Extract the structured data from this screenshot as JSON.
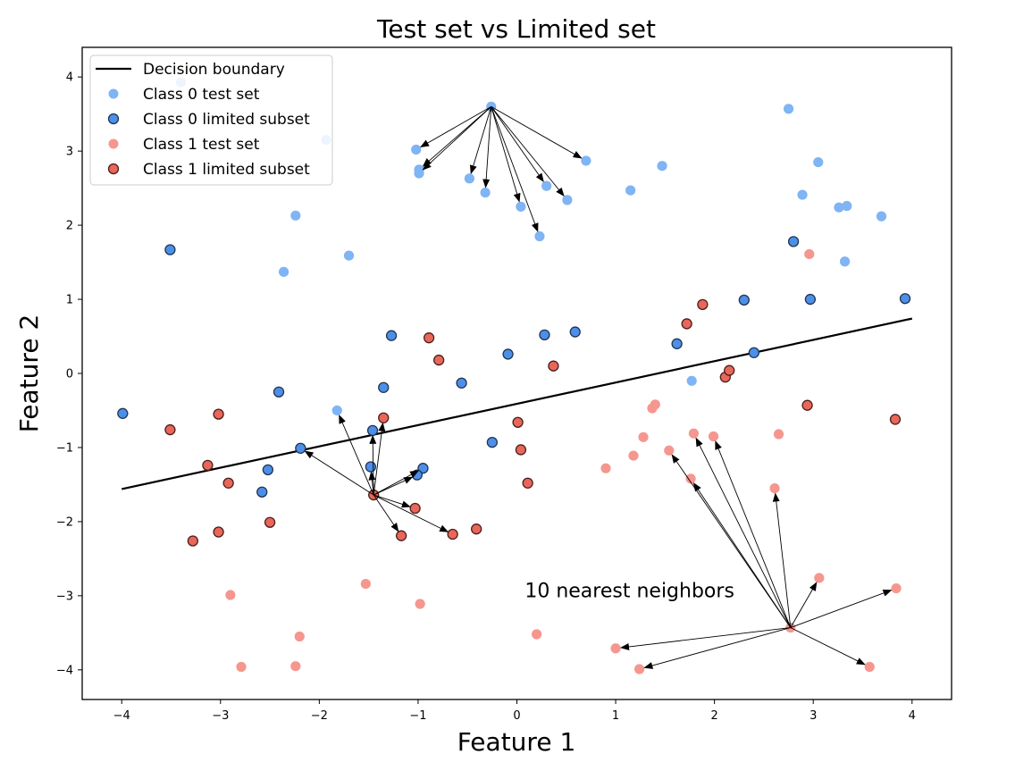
{
  "chart_data": {
    "type": "scatter",
    "title": "Test set vs Limited set",
    "xlabel": "Feature 1",
    "ylabel": "Feature 2",
    "xlim": [
      -4.4,
      4.4
    ],
    "ylim": [
      -4.4,
      4.4
    ],
    "xticks": [
      -4,
      -3,
      -2,
      -1,
      0,
      1,
      2,
      3,
      4
    ],
    "yticks": [
      -4,
      -3,
      -2,
      -1,
      0,
      1,
      2,
      3,
      4
    ],
    "xtick_labels": [
      "−4",
      "−3",
      "−2",
      "−1",
      "0",
      "1",
      "2",
      "3",
      "4"
    ],
    "ytick_labels": [
      "−4",
      "−3",
      "−2",
      "−1",
      "0",
      "1",
      "2",
      "3",
      "4"
    ],
    "grid": false,
    "legend_position": "top-left",
    "decision_boundary": {
      "name": "Decision boundary",
      "color": "#000000",
      "x": [
        -4,
        4
      ],
      "y": [
        -1.56,
        0.74
      ]
    },
    "series": [
      {
        "name": "Class 0 test set",
        "color": "#7fb4f5",
        "edge": "none",
        "points": [
          [
            -3.4,
            3.93
          ],
          [
            -1.93,
            3.15
          ],
          [
            -2.24,
            2.13
          ],
          [
            -1.7,
            1.59
          ],
          [
            -2.36,
            1.37
          ],
          [
            -1.02,
            3.02
          ],
          [
            -0.99,
            2.75
          ],
          [
            -0.99,
            2.7
          ],
          [
            -0.48,
            2.63
          ],
          [
            -0.32,
            2.44
          ],
          [
            -0.26,
            3.6
          ],
          [
            0.04,
            2.25
          ],
          [
            0.23,
            1.85
          ],
          [
            0.3,
            2.53
          ],
          [
            0.51,
            2.34
          ],
          [
            0.7,
            2.87
          ],
          [
            1.15,
            2.47
          ],
          [
            1.47,
            2.8
          ],
          [
            2.75,
            3.57
          ],
          [
            2.89,
            2.41
          ],
          [
            3.05,
            2.85
          ],
          [
            3.26,
            2.24
          ],
          [
            3.34,
            2.26
          ],
          [
            3.69,
            2.12
          ],
          [
            3.32,
            1.51
          ],
          [
            1.77,
            -0.1
          ],
          [
            -1.82,
            -0.5
          ]
        ]
      },
      {
        "name": "Class 0 limited subset",
        "color": "#4d8fe8",
        "edge": "#1f3552",
        "points": [
          [
            -3.51,
            1.67
          ],
          [
            -3.99,
            -0.54
          ],
          [
            -2.41,
            -0.25
          ],
          [
            -1.27,
            0.51
          ],
          [
            -1.35,
            -0.19
          ],
          [
            -1.46,
            -0.77
          ],
          [
            -2.19,
            -1.01
          ],
          [
            -2.52,
            -1.3
          ],
          [
            -2.58,
            -1.6
          ],
          [
            -1.48,
            -1.26
          ],
          [
            -0.95,
            -1.28
          ],
          [
            -1.01,
            -1.37
          ],
          [
            -0.56,
            -0.13
          ],
          [
            -0.09,
            0.26
          ],
          [
            0.28,
            0.52
          ],
          [
            0.59,
            0.56
          ],
          [
            -0.25,
            -0.93
          ],
          [
            1.62,
            0.4
          ],
          [
            2.3,
            0.99
          ],
          [
            2.4,
            0.28
          ],
          [
            2.8,
            1.78
          ],
          [
            2.97,
            1.0
          ],
          [
            3.93,
            1.01
          ]
        ]
      },
      {
        "name": "Class 1 test set",
        "color": "#f5978f",
        "edge": "none",
        "points": [
          [
            2.96,
            1.61
          ],
          [
            1.4,
            -0.42
          ],
          [
            1.37,
            -0.47
          ],
          [
            1.28,
            -0.86
          ],
          [
            1.79,
            -0.81
          ],
          [
            1.99,
            -0.85
          ],
          [
            2.65,
            -0.82
          ],
          [
            1.54,
            -1.04
          ],
          [
            1.18,
            -1.11
          ],
          [
            0.9,
            -1.28
          ],
          [
            1.76,
            -1.42
          ],
          [
            2.61,
            -1.55
          ],
          [
            3.06,
            -2.76
          ],
          [
            3.84,
            -2.9
          ],
          [
            2.77,
            -3.43
          ],
          [
            1.0,
            -3.71
          ],
          [
            1.24,
            -3.99
          ],
          [
            3.57,
            -3.96
          ],
          [
            0.2,
            -3.52
          ],
          [
            -0.98,
            -3.11
          ],
          [
            -1.53,
            -2.84
          ],
          [
            -2.9,
            -2.99
          ],
          [
            -2.2,
            -3.55
          ],
          [
            -2.79,
            -3.96
          ],
          [
            -2.24,
            -3.95
          ]
        ]
      },
      {
        "name": "Class 1 limited subset",
        "color": "#e8675a",
        "edge": "#4a1f1b",
        "points": [
          [
            -3.51,
            -0.76
          ],
          [
            -3.02,
            -0.55
          ],
          [
            -3.13,
            -1.24
          ],
          [
            -2.92,
            -1.48
          ],
          [
            -3.28,
            -2.26
          ],
          [
            -3.02,
            -2.14
          ],
          [
            -2.5,
            -2.01
          ],
          [
            -1.35,
            -0.6
          ],
          [
            -1.45,
            -1.64
          ],
          [
            -1.03,
            -1.82
          ],
          [
            -1.17,
            -2.19
          ],
          [
            -0.65,
            -2.17
          ],
          [
            -0.41,
            -2.1
          ],
          [
            -0.89,
            0.48
          ],
          [
            -0.79,
            0.18
          ],
          [
            0.01,
            -0.66
          ],
          [
            0.04,
            -1.03
          ],
          [
            0.11,
            -1.48
          ],
          [
            0.37,
            0.1
          ],
          [
            1.72,
            0.67
          ],
          [
            1.88,
            0.93
          ],
          [
            2.11,
            -0.05
          ],
          [
            2.15,
            0.04
          ],
          [
            2.94,
            -0.43
          ],
          [
            3.83,
            -0.62
          ]
        ]
      }
    ],
    "neighbor_groups": [
      {
        "from": [
          -0.26,
          3.6
        ],
        "to": [
          [
            -1.02,
            3.02
          ],
          [
            -0.99,
            2.75
          ],
          [
            -0.99,
            2.7
          ],
          [
            -0.48,
            2.63
          ],
          [
            -0.32,
            2.44
          ],
          [
            0.04,
            2.25
          ],
          [
            0.23,
            1.85
          ],
          [
            0.3,
            2.53
          ],
          [
            0.51,
            2.34
          ],
          [
            0.7,
            2.87
          ]
        ]
      },
      {
        "from": [
          -1.45,
          -1.64
        ],
        "to": [
          [
            -1.82,
            -0.5
          ],
          [
            -2.19,
            -1.01
          ],
          [
            -1.46,
            -0.77
          ],
          [
            -1.35,
            -0.6
          ],
          [
            -1.48,
            -1.26
          ],
          [
            -1.01,
            -1.37
          ],
          [
            -0.95,
            -1.28
          ],
          [
            -1.03,
            -1.82
          ],
          [
            -1.17,
            -2.19
          ],
          [
            -0.65,
            -2.17
          ]
        ]
      },
      {
        "from": [
          2.77,
          -3.43
        ],
        "to": [
          [
            1.54,
            -1.04
          ],
          [
            1.79,
            -0.81
          ],
          [
            1.99,
            -0.85
          ],
          [
            1.76,
            -1.42
          ],
          [
            2.61,
            -1.55
          ],
          [
            3.06,
            -2.76
          ],
          [
            3.84,
            -2.9
          ],
          [
            1.0,
            -3.71
          ],
          [
            1.24,
            -3.99
          ],
          [
            3.57,
            -3.96
          ]
        ]
      }
    ],
    "annotations": [
      {
        "text": "10 nearest neighbors",
        "x": 0.08,
        "y": -3.02
      }
    ],
    "legend": [
      {
        "label": "Decision boundary",
        "kind": "line",
        "color": "#000000"
      },
      {
        "label": "Class 0 test set",
        "kind": "marker",
        "color": "#7fb4f5",
        "edge": "none"
      },
      {
        "label": "Class 0 limited subset",
        "kind": "marker",
        "color": "#4d8fe8",
        "edge": "#1f3552"
      },
      {
        "label": "Class 1 test set",
        "kind": "marker",
        "color": "#f5978f",
        "edge": "none"
      },
      {
        "label": "Class 1 limited subset",
        "kind": "marker",
        "color": "#e8675a",
        "edge": "#4a1f1b"
      }
    ]
  }
}
